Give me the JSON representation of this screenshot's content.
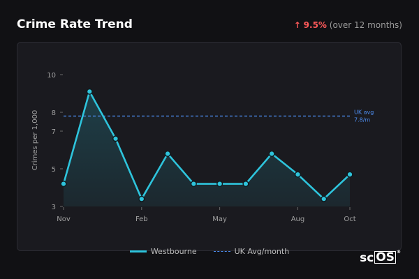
{
  "header": {
    "title": "Crime Rate Trend",
    "change_arrow": "↑",
    "change_pct": "9.5%",
    "change_note": "(over 12 months)"
  },
  "logo": {
    "prefix": "sc",
    "boxed": "OS",
    "mark": "®"
  },
  "legend": {
    "series_label": "Westbourne",
    "reference_label": "UK Avg/month"
  },
  "colors": {
    "series": "#2ec4dc",
    "reference": "#4d8df0",
    "increase": "#ff5a5a"
  },
  "chart_data": {
    "type": "line",
    "title": "Crime Rate Trend",
    "xlabel": "",
    "ylabel": "Crimes per 1,000",
    "x": [
      "Nov",
      "Dec",
      "Jan",
      "Feb",
      "Mar",
      "Apr",
      "May",
      "Jun",
      "Jul",
      "Aug",
      "Sep",
      "Oct"
    ],
    "x_tick_labels": [
      "Nov",
      "Feb",
      "May",
      "Aug",
      "Oct"
    ],
    "y_tick_labels": [
      "3",
      "5",
      "7",
      "8",
      "10"
    ],
    "ylim": [
      3,
      10
    ],
    "series": [
      {
        "name": "Westbourne",
        "values": [
          4.2,
          9.1,
          6.6,
          3.4,
          5.8,
          4.2,
          4.2,
          4.2,
          5.8,
          4.7,
          3.4,
          4.7
        ],
        "fill": true
      }
    ],
    "reference_line": {
      "name": "UK Avg/month",
      "value": 7.8,
      "label": "UK avg",
      "label2": "7.8/m"
    },
    "grid": false,
    "legend_position": "bottom-center"
  }
}
